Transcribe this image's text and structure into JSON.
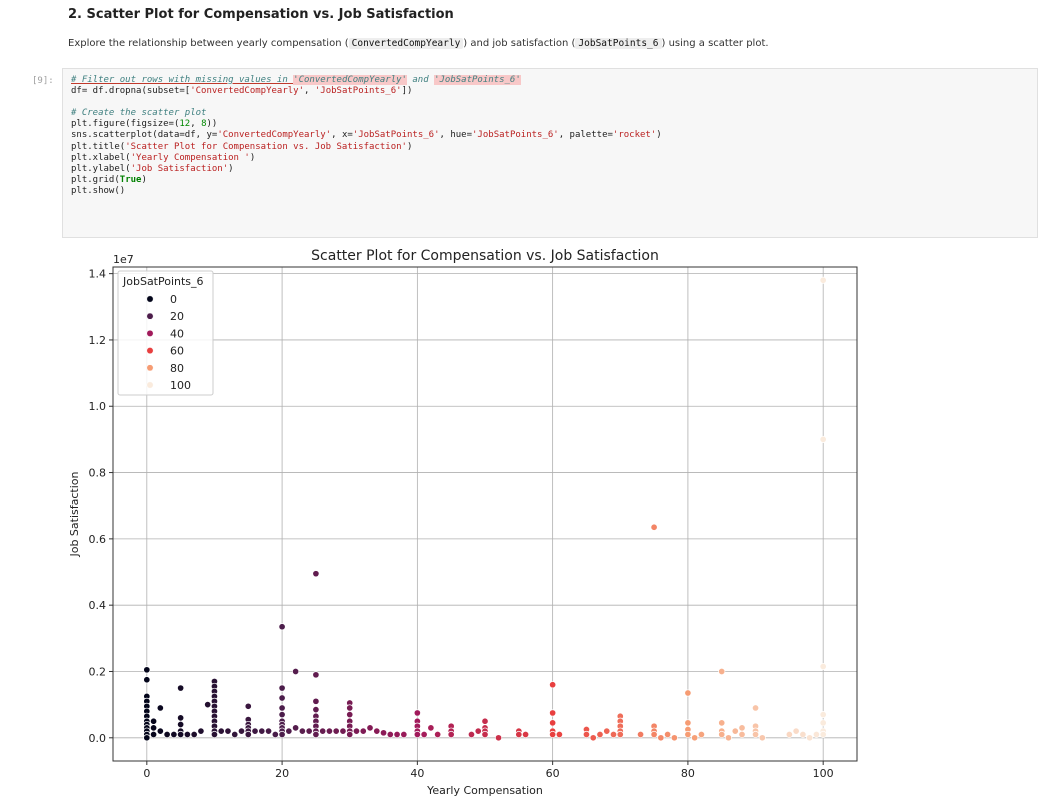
{
  "notebook": {
    "heading": "2. Scatter Plot for Compensation vs. Job Satisfaction",
    "description": {
      "part1": "Explore the relationship between yearly compensation (",
      "code1": "ConvertedCompYearly",
      "part2": ") and job satisfaction (",
      "code2": "JobSatPoints_6",
      "part3": ") using a scatter plot."
    },
    "cell_prompt": "[9]:",
    "code": {
      "l1_comment_a": "# Filter out rows with missing values in ",
      "l1_str_a": "'ConvertedCompYearly'",
      "l1_comment_b": " and ",
      "l1_str_b": "'JobSatPoints_6'",
      "l2_a": "df= df.dropna(subset=[",
      "l2_s1": "'ConvertedCompYearly'",
      "l2_b": ", ",
      "l2_s2": "'JobSatPoints_6'",
      "l2_c": "])",
      "l4_comment": "# Create the scatter plot",
      "l5_a": "plt.figure(figsize=(",
      "l5_n1": "12",
      "l5_b": ", ",
      "l5_n2": "8",
      "l5_c": "))",
      "l6_a": "sns.scatterplot(data=df, y=",
      "l6_s1": "'ConvertedCompYearly'",
      "l6_b": ", x=",
      "l6_s2": "'JobSatPoints_6'",
      "l6_c": ", hue=",
      "l6_s3": "'JobSatPoints_6'",
      "l6_d": ", palette=",
      "l6_s4": "'rocket'",
      "l6_e": ")",
      "l7_a": "plt.title(",
      "l7_s": "'Scatter Plot for Compensation vs. Job Satisfaction'",
      "l7_b": ")",
      "l8_a": "plt.xlabel(",
      "l8_s": "'Yearly Compensation '",
      "l8_b": ")",
      "l9_a": "plt.ylabel(",
      "l9_s": "'Job Satisfaction'",
      "l9_b": ")",
      "l10_a": "plt.grid(",
      "l10_kw": "True",
      "l10_b": ")",
      "l11": "plt.show()"
    }
  },
  "chart_data": {
    "type": "scatter",
    "title": "Scatter Plot for Compensation vs. Job Satisfaction",
    "xlabel": "Yearly Compensation",
    "ylabel": "Job Satisfaction",
    "y_offset_label": "1e7",
    "xlim": [
      -5,
      105
    ],
    "ylim": [
      -0.07,
      1.42
    ],
    "xticks": [
      0,
      20,
      40,
      60,
      80,
      100
    ],
    "xtick_labels": [
      "0",
      "20",
      "40",
      "60",
      "80",
      "100"
    ],
    "yticks": [
      0.0,
      0.2,
      0.4,
      0.6,
      0.8,
      1.0,
      1.2,
      1.4
    ],
    "ytick_labels": [
      "0.0",
      "0.2",
      "0.4",
      "0.6",
      "0.8",
      "1.0",
      "1.2",
      "1.4"
    ],
    "grid": true,
    "palette": "rocket",
    "legend": {
      "title": "JobSatPoints_6",
      "placement": "top-left",
      "entries": [
        {
          "label": "0",
          "color": "#03051a"
        },
        {
          "label": "20",
          "color": "#4c1d4b"
        },
        {
          "label": "40",
          "color": "#a11a5b"
        },
        {
          "label": "60",
          "color": "#e83f3f"
        },
        {
          "label": "80",
          "color": "#f69c73"
        },
        {
          "label": "100",
          "color": "#faebdd"
        }
      ]
    },
    "points": [
      [
        0,
        0.205
      ],
      [
        0,
        0.175
      ],
      [
        0,
        0.125
      ],
      [
        0,
        0.11
      ],
      [
        0,
        0.095
      ],
      [
        0,
        0.08
      ],
      [
        0,
        0.065
      ],
      [
        0,
        0.05
      ],
      [
        0,
        0.04
      ],
      [
        0,
        0.03
      ],
      [
        0,
        0.02
      ],
      [
        0,
        0.01
      ],
      [
        0,
        0.0
      ],
      [
        1,
        0.05
      ],
      [
        1,
        0.03
      ],
      [
        1,
        0.01
      ],
      [
        2,
        0.09
      ],
      [
        2,
        0.02
      ],
      [
        3,
        0.01
      ],
      [
        4,
        0.01
      ],
      [
        5,
        0.15
      ],
      [
        5,
        0.06
      ],
      [
        5,
        0.04
      ],
      [
        5,
        0.02
      ],
      [
        5,
        0.01
      ],
      [
        6,
        0.01
      ],
      [
        7,
        0.01
      ],
      [
        8,
        0.02
      ],
      [
        9,
        0.1
      ],
      [
        10,
        0.17
      ],
      [
        10,
        0.155
      ],
      [
        10,
        0.14
      ],
      [
        10,
        0.125
      ],
      [
        10,
        0.11
      ],
      [
        10,
        0.095
      ],
      [
        10,
        0.08
      ],
      [
        10,
        0.065
      ],
      [
        10,
        0.05
      ],
      [
        10,
        0.035
      ],
      [
        10,
        0.02
      ],
      [
        10,
        0.01
      ],
      [
        11,
        0.02
      ],
      [
        12,
        0.02
      ],
      [
        13,
        0.01
      ],
      [
        14,
        0.02
      ],
      [
        15,
        0.095
      ],
      [
        15,
        0.055
      ],
      [
        15,
        0.04
      ],
      [
        15,
        0.03
      ],
      [
        15,
        0.02
      ],
      [
        15,
        0.01
      ],
      [
        16,
        0.02
      ],
      [
        17,
        0.02
      ],
      [
        18,
        0.02
      ],
      [
        19,
        0.01
      ],
      [
        20,
        0.335
      ],
      [
        20,
        0.15
      ],
      [
        20,
        0.12
      ],
      [
        20,
        0.09
      ],
      [
        20,
        0.07
      ],
      [
        20,
        0.05
      ],
      [
        20,
        0.04
      ],
      [
        20,
        0.03
      ],
      [
        20,
        0.02
      ],
      [
        20,
        0.01
      ],
      [
        21,
        0.02
      ],
      [
        22,
        0.2
      ],
      [
        22,
        0.03
      ],
      [
        23,
        0.02
      ],
      [
        24,
        0.02
      ],
      [
        25,
        0.495
      ],
      [
        25,
        0.19
      ],
      [
        25,
        0.11
      ],
      [
        25,
        0.085
      ],
      [
        25,
        0.065
      ],
      [
        25,
        0.05
      ],
      [
        25,
        0.035
      ],
      [
        25,
        0.02
      ],
      [
        25,
        0.01
      ],
      [
        26,
        0.02
      ],
      [
        27,
        0.02
      ],
      [
        28,
        0.02
      ],
      [
        29,
        0.02
      ],
      [
        30,
        0.105
      ],
      [
        30,
        0.09
      ],
      [
        30,
        0.07
      ],
      [
        30,
        0.05
      ],
      [
        30,
        0.035
      ],
      [
        30,
        0.02
      ],
      [
        30,
        0.01
      ],
      [
        31,
        0.02
      ],
      [
        32,
        0.02
      ],
      [
        33,
        0.03
      ],
      [
        34,
        0.02
      ],
      [
        35,
        0.015
      ],
      [
        36,
        0.01
      ],
      [
        37,
        0.01
      ],
      [
        38,
        0.01
      ],
      [
        40,
        0.075
      ],
      [
        40,
        0.05
      ],
      [
        40,
        0.035
      ],
      [
        40,
        0.02
      ],
      [
        40,
        0.01
      ],
      [
        41,
        0.01
      ],
      [
        42,
        0.03
      ],
      [
        43,
        0.01
      ],
      [
        45,
        0.035
      ],
      [
        45,
        0.02
      ],
      [
        45,
        0.01
      ],
      [
        48,
        0.01
      ],
      [
        49,
        0.02
      ],
      [
        50,
        0.05
      ],
      [
        50,
        0.03
      ],
      [
        50,
        0.02
      ],
      [
        50,
        0.01
      ],
      [
        52,
        0.0
      ],
      [
        55,
        0.02
      ],
      [
        55,
        0.01
      ],
      [
        56,
        0.01
      ],
      [
        60,
        0.16
      ],
      [
        60,
        0.075
      ],
      [
        60,
        0.045
      ],
      [
        60,
        0.02
      ],
      [
        60,
        0.01
      ],
      [
        61,
        0.01
      ],
      [
        65,
        0.025
      ],
      [
        65,
        0.01
      ],
      [
        66,
        0.0
      ],
      [
        67,
        0.01
      ],
      [
        68,
        0.02
      ],
      [
        69,
        0.01
      ],
      [
        70,
        0.065
      ],
      [
        70,
        0.05
      ],
      [
        70,
        0.035
      ],
      [
        70,
        0.02
      ],
      [
        70,
        0.01
      ],
      [
        73,
        0.01
      ],
      [
        75,
        0.635
      ],
      [
        75,
        0.035
      ],
      [
        75,
        0.02
      ],
      [
        75,
        0.01
      ],
      [
        76,
        0.0
      ],
      [
        77,
        0.01
      ],
      [
        78,
        0.0
      ],
      [
        80,
        0.135
      ],
      [
        80,
        0.045
      ],
      [
        80,
        0.025
      ],
      [
        80,
        0.01
      ],
      [
        81,
        0.0
      ],
      [
        82,
        0.01
      ],
      [
        85,
        0.2
      ],
      [
        85,
        0.045
      ],
      [
        85,
        0.02
      ],
      [
        85,
        0.01
      ],
      [
        86,
        0.0
      ],
      [
        87,
        0.02
      ],
      [
        88,
        0.03
      ],
      [
        88,
        0.01
      ],
      [
        90,
        0.09
      ],
      [
        90,
        0.035
      ],
      [
        90,
        0.02
      ],
      [
        90,
        0.01
      ],
      [
        91,
        0.0
      ],
      [
        95,
        0.01
      ],
      [
        96,
        0.02
      ],
      [
        97,
        0.01
      ],
      [
        98,
        0.0
      ],
      [
        99,
        0.01
      ],
      [
        100,
        1.38
      ],
      [
        100,
        0.9
      ],
      [
        100,
        0.215
      ],
      [
        100,
        0.07
      ],
      [
        100,
        0.045
      ],
      [
        100,
        0.02
      ],
      [
        100,
        0.01
      ]
    ]
  }
}
